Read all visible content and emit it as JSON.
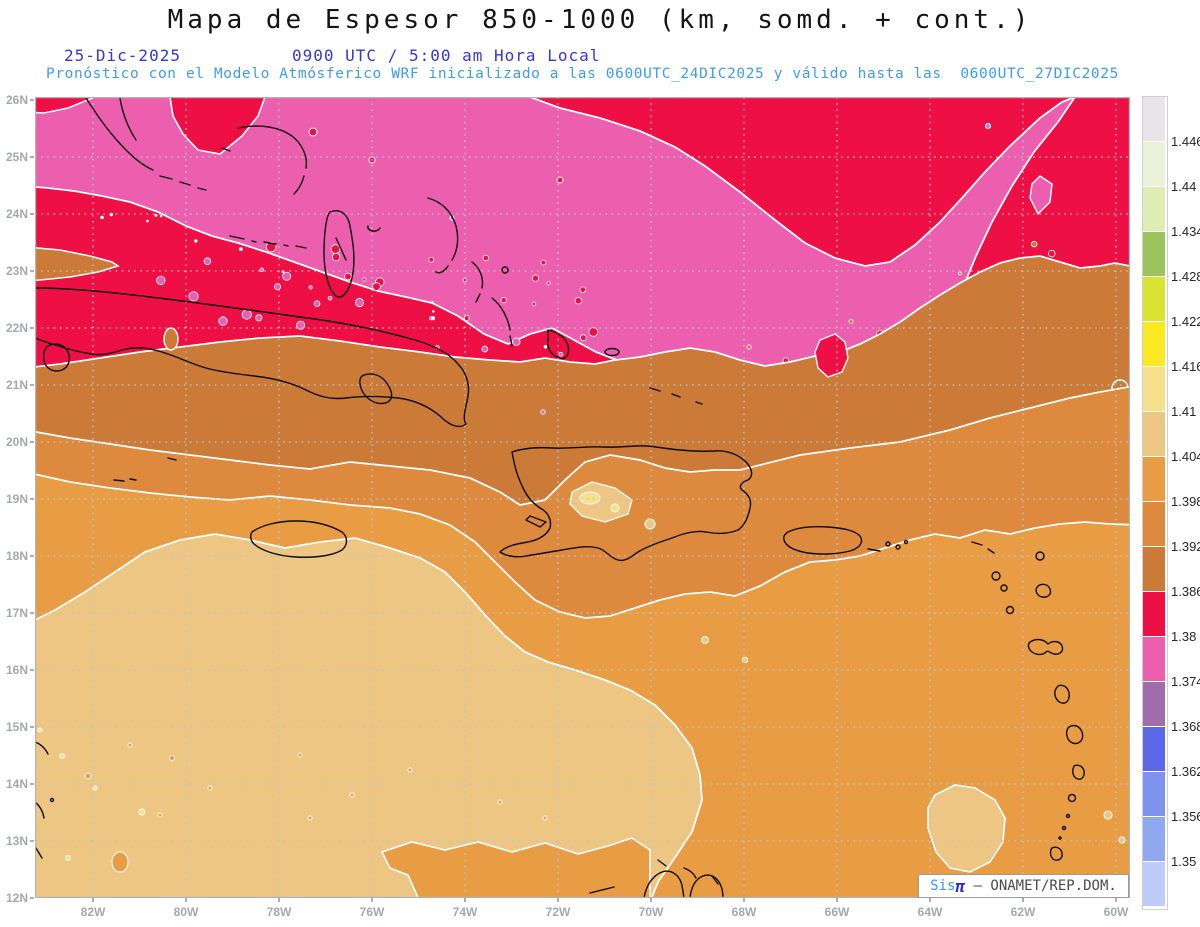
{
  "header": {
    "title": "Mapa de Espesor 850-1000 (km, somd. + cont.)",
    "date": "25-Dic-2025",
    "time_line": "0900 UTC / 5:00 am Hora Local",
    "forecast_line": "Pronóstico con el Modelo Atmósferico WRF inicializado a las 0600UTC_24DIC2025 y válido hasta las  0600UTC_27DIC2025"
  },
  "axes": {
    "lat_labels": [
      "26N",
      "25N",
      "24N",
      "23N",
      "22N",
      "21N",
      "20N",
      "19N",
      "18N",
      "17N",
      "16N",
      "15N",
      "14N",
      "13N",
      "12N"
    ],
    "lon_labels": [
      "82W",
      "80W",
      "78W",
      "76W",
      "74W",
      "72W",
      "70W",
      "68W",
      "66W",
      "64W",
      "62W",
      "60W"
    ]
  },
  "colorbar": {
    "tick_labels": [
      "1.446",
      "1.44",
      "1.434",
      "1.428",
      "1.422",
      "1.416",
      "1.41",
      "1.404",
      "1.398",
      "1.392",
      "1.386",
      "1.38",
      "1.374",
      "1.368",
      "1.362",
      "1.356",
      "1.35"
    ],
    "colors_top_to_bottom": [
      "#e7e5e7",
      "#ebf2d9",
      "#dfecb2",
      "#9cc45e",
      "#d9e432",
      "#f9e822",
      "#f6e18a",
      "#edc684",
      "#e89c44",
      "#dd8a3e",
      "#cb7a37",
      "#ee0f44",
      "#ec5fae",
      "#a06dac",
      "#5c68e8",
      "#7d93ee",
      "#8fa9f0",
      "#becdf7"
    ]
  },
  "map_colors": {
    "pink": "#ec5fae",
    "red": "#ee0f44",
    "orange_dark": "#cb7a37",
    "orange_mid": "#dd8a3e",
    "orange": "#e89c44",
    "tan": "#edc684",
    "pale_yellow": "#f6e18a",
    "blue_speck": "#7d93ee",
    "mauve_speck": "#a06dac",
    "grid": "#b9c6cf",
    "coastline": "#0d0d0d",
    "contour": "#ffffff",
    "frame": "#b3b3b3"
  },
  "attribution": {
    "brand": "Sis",
    "brand_symbol": "π",
    "separator": " – ",
    "org": "ONAMET/REP.DOM."
  }
}
